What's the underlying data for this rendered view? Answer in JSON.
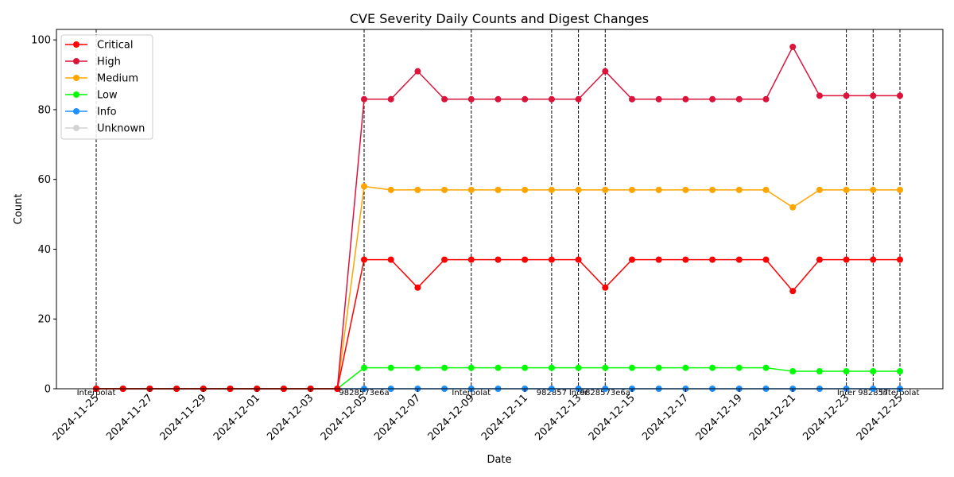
{
  "chart_data": {
    "type": "line",
    "title": "CVE Severity Daily Counts and Digest Changes",
    "xlabel": "Date",
    "ylabel": "Count",
    "ylim": [
      0,
      103
    ],
    "yticks": [
      0,
      20,
      40,
      60,
      80,
      100
    ],
    "grid": false,
    "legend_position": "top-left",
    "x": [
      "2024-11-25",
      "2024-11-26",
      "2024-11-27",
      "2024-11-28",
      "2024-11-29",
      "2024-11-30",
      "2024-12-01",
      "2024-12-02",
      "2024-12-03",
      "2024-12-04",
      "2024-12-05",
      "2024-12-06",
      "2024-12-07",
      "2024-12-08",
      "2024-12-09",
      "2024-12-10",
      "2024-12-11",
      "2024-12-12",
      "2024-12-13",
      "2024-12-14",
      "2024-12-15",
      "2024-12-16",
      "2024-12-17",
      "2024-12-18",
      "2024-12-19",
      "2024-12-20",
      "2024-12-21",
      "2024-12-22",
      "2024-12-23",
      "2024-12-24",
      "2024-12-25"
    ],
    "xticks": [
      "2024-11-25",
      "2024-11-27",
      "2024-11-29",
      "2024-12-01",
      "2024-12-03",
      "2024-12-05",
      "2024-12-07",
      "2024-12-09",
      "2024-12-11",
      "2024-12-13",
      "2024-12-15",
      "2024-12-17",
      "2024-12-19",
      "2024-12-21",
      "2024-12-23",
      "2024-12-25"
    ],
    "series": [
      {
        "name": "Critical",
        "color": "#ff0000",
        "values": [
          0,
          0,
          0,
          0,
          0,
          0,
          0,
          0,
          0,
          0,
          37,
          37,
          29,
          37,
          37,
          37,
          37,
          37,
          37,
          29,
          37,
          37,
          37,
          37,
          37,
          37,
          28,
          37,
          37,
          37,
          37
        ]
      },
      {
        "name": "High",
        "color": "#dc143c",
        "values": [
          0,
          0,
          0,
          0,
          0,
          0,
          0,
          0,
          0,
          0,
          83,
          83,
          91,
          83,
          83,
          83,
          83,
          83,
          83,
          91,
          83,
          83,
          83,
          83,
          83,
          83,
          98,
          84,
          84,
          84,
          84
        ]
      },
      {
        "name": "Medium",
        "color": "#ffa500",
        "values": [
          0,
          0,
          0,
          0,
          0,
          0,
          0,
          0,
          0,
          0,
          58,
          57,
          57,
          57,
          57,
          57,
          57,
          57,
          57,
          57,
          57,
          57,
          57,
          57,
          57,
          57,
          52,
          57,
          57,
          57,
          57
        ]
      },
      {
        "name": "Low",
        "color": "#00ff00",
        "values": [
          0,
          0,
          0,
          0,
          0,
          0,
          0,
          0,
          0,
          0,
          6,
          6,
          6,
          6,
          6,
          6,
          6,
          6,
          6,
          6,
          6,
          6,
          6,
          6,
          6,
          6,
          5,
          5,
          5,
          5,
          5
        ]
      },
      {
        "name": "Info",
        "color": "#1e90ff",
        "values": [
          0,
          0,
          0,
          0,
          0,
          0,
          0,
          0,
          0,
          0,
          0,
          0,
          0,
          0,
          0,
          0,
          0,
          0,
          0,
          0,
          0,
          0,
          0,
          0,
          0,
          0,
          0,
          0,
          0,
          0,
          0
        ]
      },
      {
        "name": "Unknown",
        "color": "#d3d3d3",
        "values": [
          0,
          0,
          0,
          0,
          0,
          0,
          0,
          0,
          0,
          0,
          0,
          0,
          0,
          0,
          0,
          0,
          0,
          0,
          0,
          0,
          0,
          0,
          0,
          0,
          0,
          0,
          0,
          0,
          0,
          0,
          0
        ]
      }
    ],
    "digest_changes": [
      {
        "date": "2024-11-25",
        "label": "Interpolat"
      },
      {
        "date": "2024-12-05",
        "label": "9828573e6a"
      },
      {
        "date": "2024-12-09",
        "label": "Interpolat"
      },
      {
        "date": "2024-12-12",
        "label": "982857"
      },
      {
        "date": "2024-12-13",
        "label": "Inter"
      },
      {
        "date": "2024-12-14",
        "label": "9828573e6a"
      },
      {
        "date": "2024-12-23",
        "label": "Inter"
      },
      {
        "date": "2024-12-24",
        "label": "982857"
      },
      {
        "date": "2024-12-25",
        "label": "Interpolat"
      }
    ]
  }
}
